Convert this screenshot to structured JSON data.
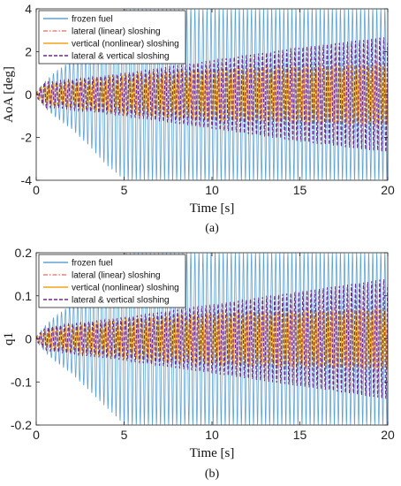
{
  "chart_data": [
    {
      "type": "line",
      "panel_label": "(a)",
      "xlabel_main": "Time",
      "xlabel_unit": "[s]",
      "ylabel": "AoA [deg]",
      "xlim": [
        0,
        20
      ],
      "ylim": [
        -4,
        4
      ],
      "x_ticks": [
        "0",
        "5",
        "10",
        "15",
        "20"
      ],
      "y_ticks": [
        "-4",
        "-2",
        "0",
        "2",
        "4"
      ],
      "x_tick_values": [
        0,
        5,
        10,
        15,
        20
      ],
      "y_tick_values": [
        -4,
        -2,
        0,
        2,
        4
      ],
      "grid": false,
      "legend_position": "top-left",
      "series": [
        {
          "name": "frozen fuel",
          "color": "#5ea3d6",
          "style": "solid",
          "envelope": {
            "t": [
              0,
              0.5,
              1,
              2,
              3,
              4,
              5,
              6,
              10,
              15,
              20
            ],
            "amp": [
              0.1,
              0.6,
              1.0,
              1.6,
              2.4,
              3.3,
              4.0,
              4.0,
              4.0,
              4.0,
              4.0
            ]
          }
        },
        {
          "name": "lateral (linear) sloshing",
          "color": "#e8837a",
          "style": "dashdot",
          "envelope": {
            "t": [
              0,
              0.5,
              1,
              3,
              5,
              10,
              15,
              20
            ],
            "amp": [
              0.1,
              0.5,
              0.5,
              0.6,
              0.7,
              1.0,
              1.2,
              1.4
            ]
          }
        },
        {
          "name": "vertical (nonlinear) sloshing",
          "color": "#f2a21f",
          "style": "solid",
          "envelope": {
            "t": [
              0,
              0.5,
              1,
              3,
              5,
              10,
              15,
              20
            ],
            "amp": [
              0.1,
              0.5,
              0.5,
              0.7,
              0.9,
              1.2,
              1.3,
              1.4
            ]
          }
        },
        {
          "name": "lateral & vertical sloshing",
          "color": "#6b2a8e",
          "style": "dashed",
          "envelope": {
            "t": [
              0,
              0.5,
              1,
              3,
              5,
              10,
              15,
              20
            ],
            "amp": [
              0.1,
              0.6,
              0.6,
              0.8,
              1.0,
              1.6,
              2.2,
              2.7
            ]
          }
        }
      ]
    },
    {
      "type": "line",
      "panel_label": "(b)",
      "xlabel_main": "Time",
      "xlabel_unit": "[s]",
      "ylabel": "q1",
      "xlim": [
        0,
        20
      ],
      "ylim": [
        -0.2,
        0.2
      ],
      "x_ticks": [
        "0",
        "5",
        "10",
        "15",
        "20"
      ],
      "y_ticks": [
        "-0.2",
        "-0.1",
        "0",
        "0.1",
        "0.2"
      ],
      "x_tick_values": [
        0,
        5,
        10,
        15,
        20
      ],
      "y_tick_values": [
        -0.2,
        -0.1,
        0,
        0.1,
        0.2
      ],
      "grid": false,
      "legend_position": "top-left",
      "series": [
        {
          "name": "frozen fuel",
          "color": "#5ea3d6",
          "style": "solid",
          "envelope": {
            "t": [
              0,
              0.5,
              1,
              2,
              3,
              4,
              5,
              6,
              10,
              15,
              20
            ],
            "amp": [
              0.005,
              0.03,
              0.05,
              0.08,
              0.12,
              0.16,
              0.2,
              0.2,
              0.2,
              0.2,
              0.2
            ]
          }
        },
        {
          "name": "lateral (linear) sloshing",
          "color": "#e8837a",
          "style": "dashdot",
          "envelope": {
            "t": [
              0,
              0.5,
              1,
              3,
              5,
              10,
              15,
              20
            ],
            "amp": [
              0.005,
              0.02,
              0.02,
              0.03,
              0.035,
              0.05,
              0.06,
              0.07
            ]
          }
        },
        {
          "name": "vertical (nonlinear) sloshing",
          "color": "#f2a21f",
          "style": "solid",
          "envelope": {
            "t": [
              0,
              0.5,
              1,
              3,
              5,
              10,
              15,
              20
            ],
            "amp": [
              0.005,
              0.02,
              0.025,
              0.035,
              0.045,
              0.06,
              0.065,
              0.07
            ]
          }
        },
        {
          "name": "lateral & vertical sloshing",
          "color": "#6b2a8e",
          "style": "dashed",
          "envelope": {
            "t": [
              0,
              0.5,
              1,
              3,
              5,
              10,
              15,
              20
            ],
            "amp": [
              0.005,
              0.025,
              0.03,
              0.04,
              0.05,
              0.08,
              0.11,
              0.14
            ]
          }
        }
      ]
    }
  ]
}
